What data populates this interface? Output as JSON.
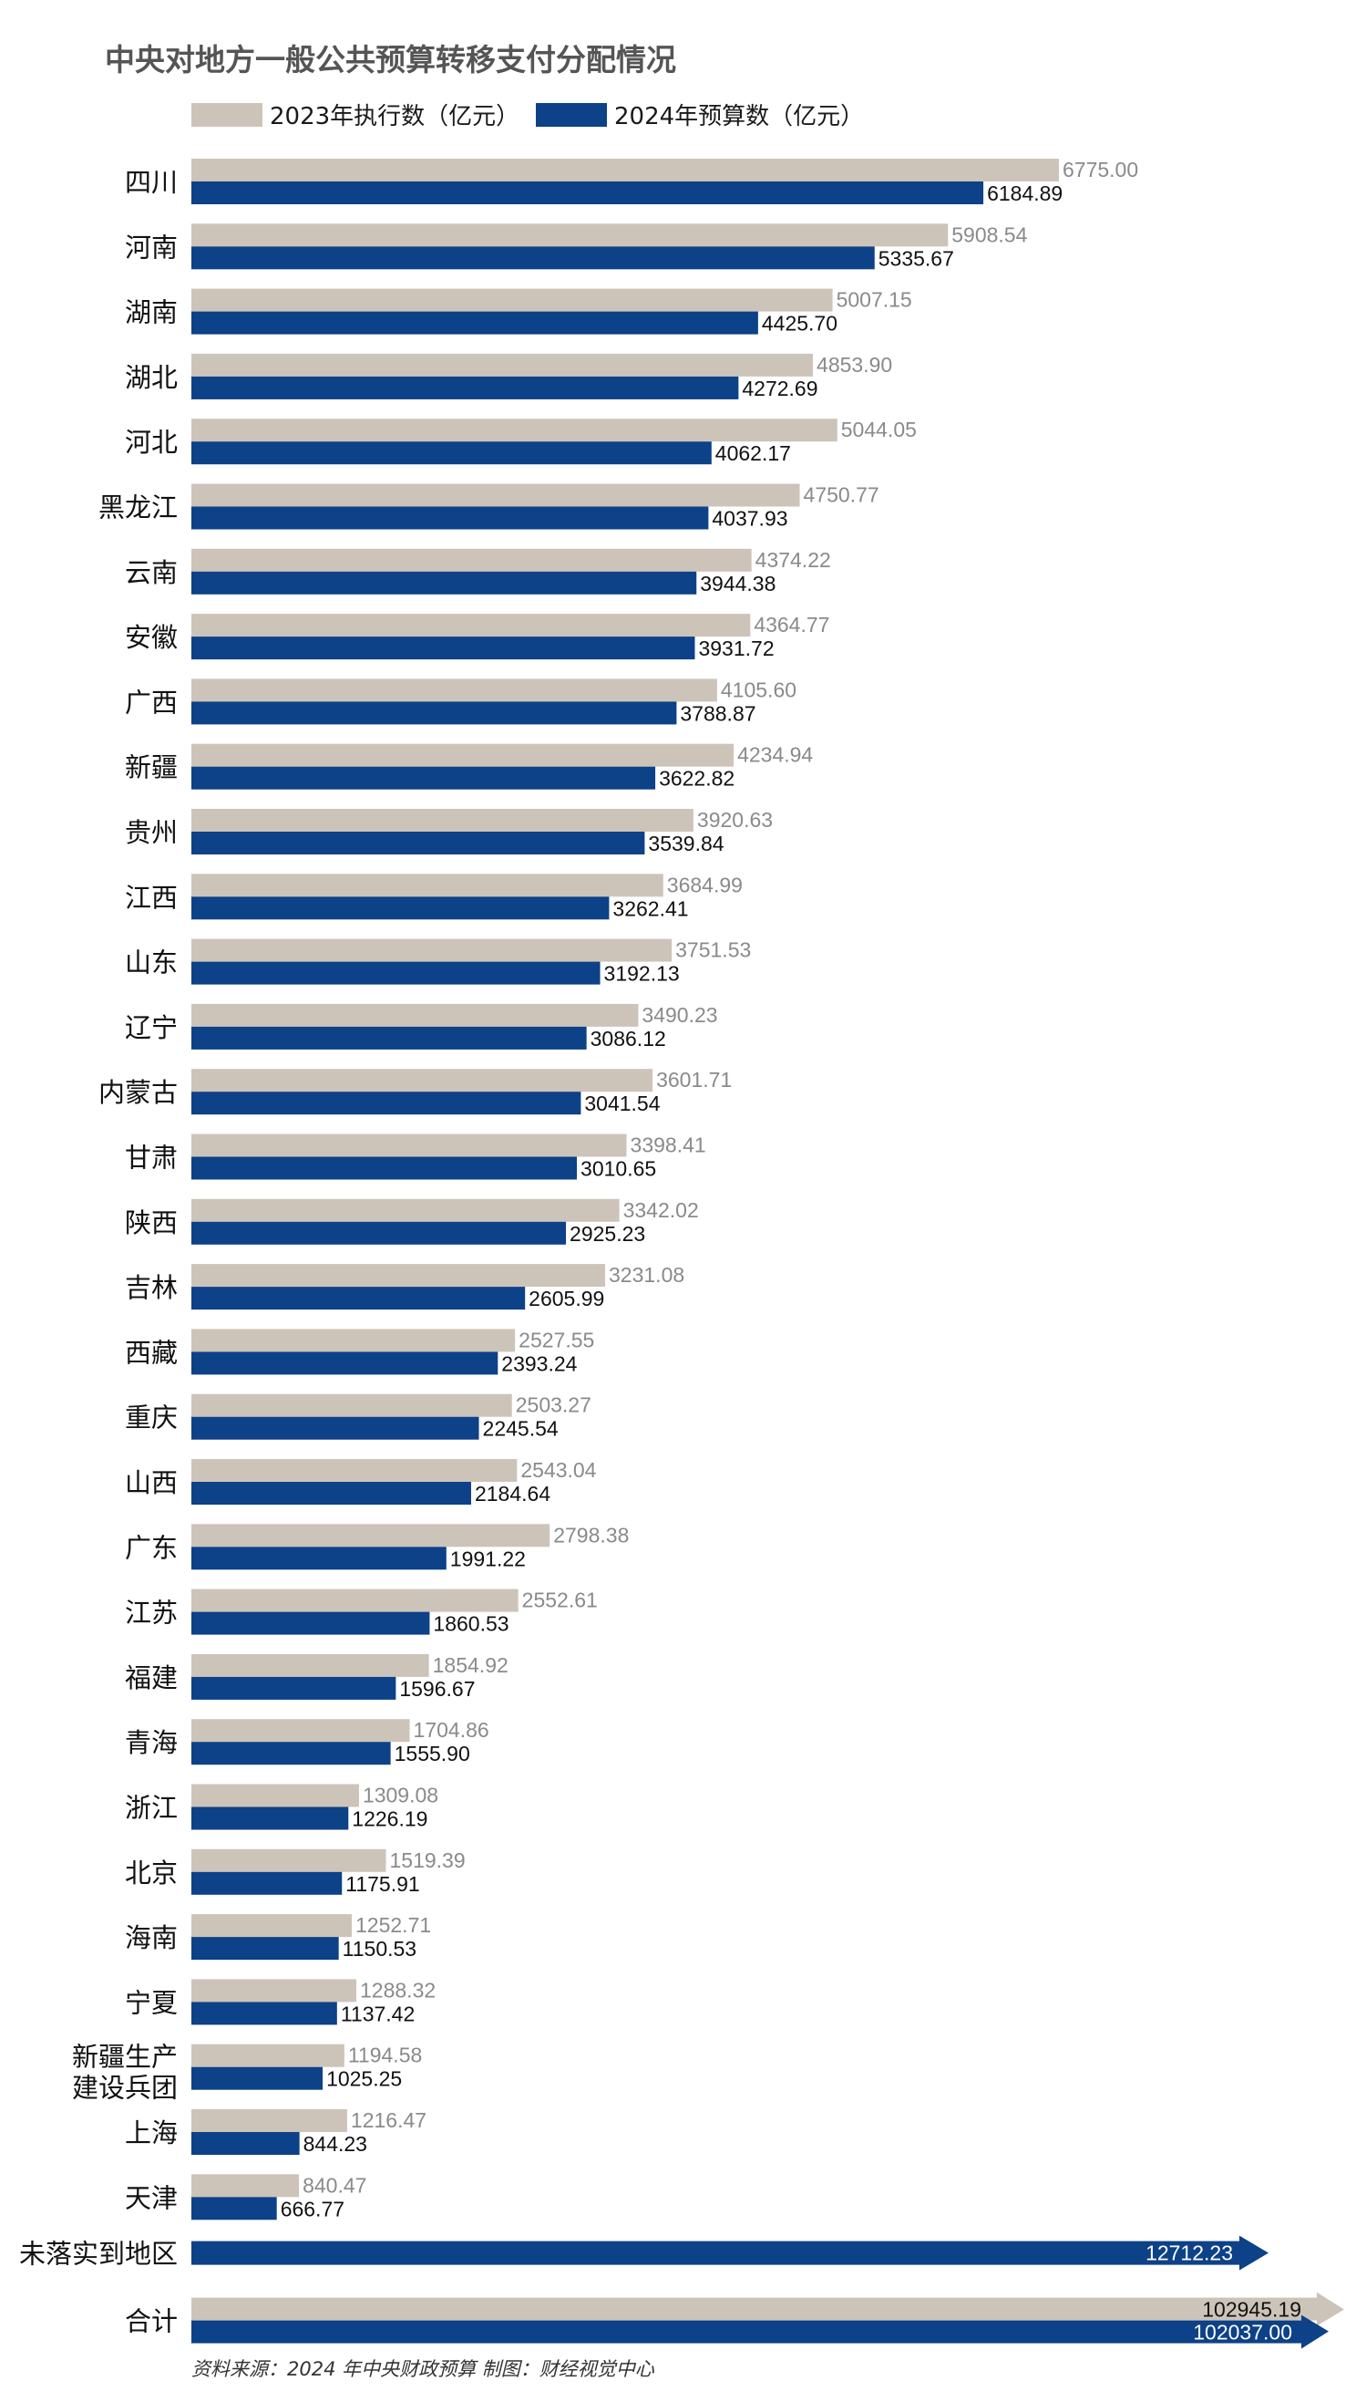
{
  "colors": {
    "y2023": "#cdc4b9",
    "y2024": "#0d4188"
  },
  "chart_data": {
    "type": "bar",
    "orientation": "horizontal",
    "title": "中央对地方一般公共预算转移支付分配情况",
    "legend": [
      "2023年执行数（亿元）",
      "2024年预算数（亿元）"
    ],
    "legend_position": "top-left",
    "categories": [
      "四川",
      "河南",
      "湖南",
      "湖北",
      "河北",
      "黑龙江",
      "云南",
      "安徽",
      "广西",
      "新疆",
      "贵州",
      "江西",
      "山东",
      "辽宁",
      "内蒙古",
      "甘肃",
      "陕西",
      "吉林",
      "西藏",
      "重庆",
      "山西",
      "广东",
      "江苏",
      "福建",
      "青海",
      "浙江",
      "北京",
      "海南",
      "宁夏",
      "新疆生产\n建设兵团",
      "上海",
      "天津"
    ],
    "series": [
      {
        "name": "2023年执行数（亿元）",
        "values": [
          6775.0,
          5908.54,
          5007.15,
          4853.9,
          5044.05,
          4750.77,
          4374.22,
          4364.77,
          4105.6,
          4234.94,
          3920.63,
          3684.99,
          3751.53,
          3490.23,
          3601.71,
          3398.41,
          3342.02,
          3231.08,
          2527.55,
          2503.27,
          2543.04,
          2798.38,
          2552.61,
          1854.92,
          1704.86,
          1309.08,
          1519.39,
          1252.71,
          1288.32,
          1194.58,
          1216.47,
          840.47
        ],
        "labels": [
          "6775.00",
          "5908.54",
          "5007.15",
          "4853.90",
          "5044.05",
          "4750.77",
          "4374.22",
          "4364.77",
          "4105.60",
          "4234.94",
          "3920.63",
          "3684.99",
          "3751.53",
          "3490.23",
          "3601.71",
          "3398.41",
          "3342.02",
          "3231.08",
          "2527.55",
          "2503.27",
          "2543.04",
          "2798.38",
          "2552.61",
          "1854.92",
          "1704.86",
          "1309.08",
          "1519.39",
          "1252.71",
          "1288.32",
          "1194.58",
          "1216.47",
          "840.47"
        ]
      },
      {
        "name": "2024年预算数（亿元）",
        "values": [
          6184.89,
          5335.67,
          4425.7,
          4272.69,
          4062.17,
          4037.93,
          3944.38,
          3931.72,
          3788.87,
          3622.82,
          3539.84,
          3262.41,
          3192.13,
          3086.12,
          3041.54,
          3010.65,
          2925.23,
          2605.99,
          2393.24,
          2245.54,
          2184.64,
          1991.22,
          1860.53,
          1596.67,
          1555.9,
          1226.19,
          1175.91,
          1150.53,
          1137.42,
          1025.25,
          844.23,
          666.77
        ],
        "labels": [
          "6184.89",
          "5335.67",
          "4425.70",
          "4272.69",
          "4062.17",
          "4037.93",
          "3944.38",
          "3931.72",
          "3788.87",
          "3622.82",
          "3539.84",
          "3262.41",
          "3192.13",
          "3086.12",
          "3041.54",
          "3010.65",
          "2925.23",
          "2605.99",
          "2393.24",
          "2245.54",
          "2184.64",
          "1991.22",
          "1860.53",
          "1596.67",
          "1555.90",
          "1226.19",
          "1175.91",
          "1150.53",
          "1137.42",
          "1025.25",
          "844.23",
          "666.77"
        ]
      }
    ],
    "extra_rows": [
      {
        "category": "未落实到地区",
        "y2024": 12712.23,
        "y2024_label": "12712.23",
        "arrow": true
      },
      {
        "category": "合计",
        "y2023": 102945.19,
        "y2023_label": "102945.19",
        "y2024": 102037.0,
        "y2024_label": "102037.00",
        "arrow": true
      }
    ],
    "source": "资料来源：2024 年中央财政预算   制图：财经视觉中心"
  }
}
